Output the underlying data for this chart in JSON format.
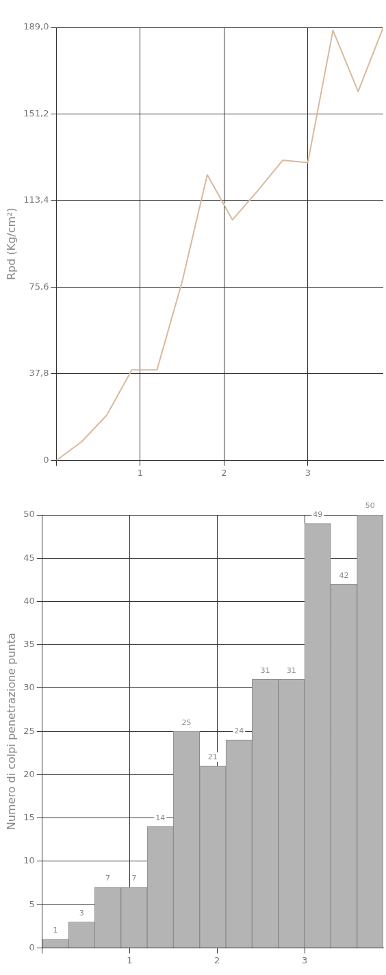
{
  "chart_data": [
    {
      "type": "line",
      "ylabel": "Rpd (Kg/cm²)",
      "x": [
        0,
        0.3,
        0.6,
        0.9,
        1.2,
        1.5,
        1.8,
        2.1,
        2.4,
        2.7,
        3.0,
        3.3,
        3.6,
        3.9
      ],
      "series": [
        {
          "color": "#d9b99b",
          "values": [
            0,
            8.1,
            19.7,
            39.5,
            39.5,
            78,
            124.7,
            105,
            117.6,
            131,
            130,
            187.7,
            161,
            189
          ]
        }
      ],
      "xlim": [
        0,
        3.9
      ],
      "xticks": [
        {
          "value": 0,
          "label": null
        },
        1,
        2,
        3
      ],
      "ylim": [
        0,
        189
      ],
      "yticks": [
        0,
        {
          "value": 37.8,
          "label": "37,8"
        },
        {
          "value": 75.6,
          "label": "75,6"
        },
        {
          "value": 113.4,
          "label": "113,4"
        },
        {
          "value": 151.2,
          "label": "151,2"
        },
        {
          "value": 189,
          "label": "189,0"
        }
      ],
      "grid": true,
      "legend": false,
      "marker": "none"
    },
    {
      "type": "histogram",
      "ylabel": "Numero di colpi penetrazione punta",
      "bins": [
        0,
        0.3,
        0.6,
        0.9,
        1.2,
        1.5,
        1.8,
        2.1,
        2.4,
        2.7,
        3.0,
        3.3,
        3.6,
        3.9
      ],
      "values": [
        1,
        3,
        7,
        7,
        14,
        25,
        21,
        24,
        31,
        31,
        49,
        42,
        50
      ],
      "color": "#b4b4b4",
      "xlim": [
        0,
        3.9
      ],
      "xticks": [
        {
          "value": 0,
          "label": null
        },
        1,
        2,
        3
      ],
      "ylim": [
        0,
        50
      ],
      "yticks": [
        0,
        5,
        10,
        15,
        20,
        25,
        30,
        35,
        40,
        45,
        50
      ],
      "grid": true,
      "legend": false,
      "data_labels": true
    }
  ]
}
